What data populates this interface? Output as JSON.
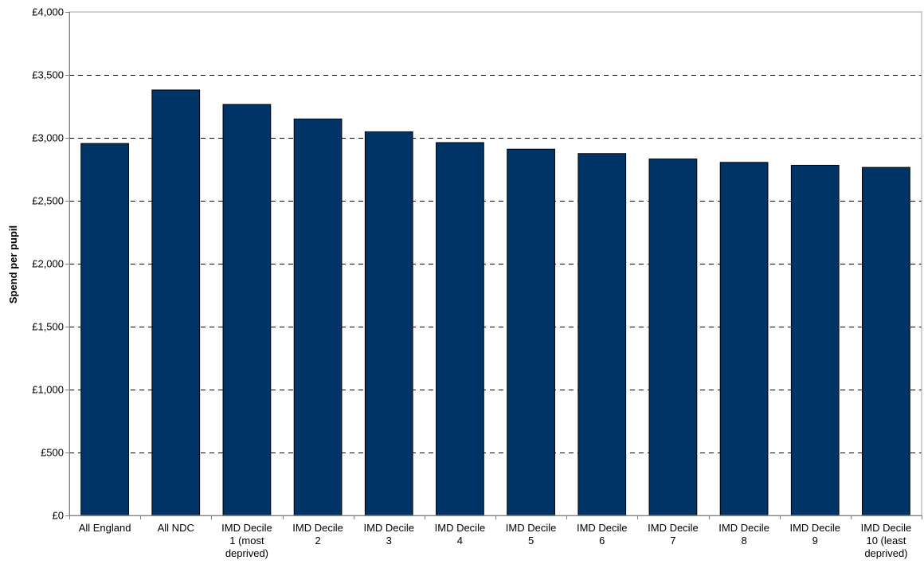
{
  "chart_data": {
    "type": "bar",
    "categories": [
      [
        "All England"
      ],
      [
        "All NDC"
      ],
      [
        "IMD  Decile",
        "1 (most",
        "deprived)"
      ],
      [
        "IMD  Decile",
        "2"
      ],
      [
        "IMD  Decile",
        "3"
      ],
      [
        "IMD  Decile",
        "4"
      ],
      [
        "IMD  Decile",
        "5"
      ],
      [
        "IMD  Decile",
        "6"
      ],
      [
        "IMD  Decile",
        "7"
      ],
      [
        "IMD  Decile",
        "8"
      ],
      [
        "IMD  Decile",
        "9"
      ],
      [
        "IMD  Decile",
        "10 (least",
        "deprived)"
      ]
    ],
    "values": [
      2955,
      3380,
      3265,
      3150,
      3048,
      2962,
      2910,
      2875,
      2832,
      2805,
      2782,
      2765
    ],
    "title": "",
    "xlabel": "",
    "ylabel": "Spend per pupil",
    "ylim": [
      0,
      4000
    ],
    "yticks": [
      0,
      500,
      1000,
      1500,
      2000,
      2500,
      3000,
      3500,
      4000
    ],
    "ytick_labels": [
      "£0",
      "£500",
      "£1,000",
      "£1,500",
      "£2,000",
      "£2,500",
      "£3,000",
      "£3,500",
      "£4,000"
    ],
    "grid": "dashed horizontal",
    "legend": "none",
    "colors": {
      "bar": "#003366",
      "bar_edge": "#000000",
      "grid": "#000000",
      "axis": "#808080"
    }
  }
}
